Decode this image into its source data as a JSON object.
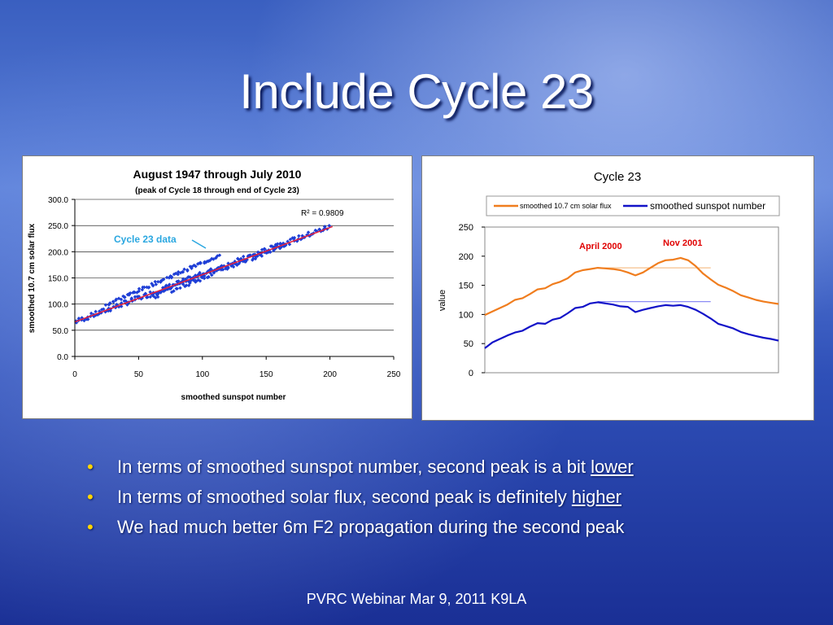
{
  "slide": {
    "title": "Include Cycle 23",
    "footer": "PVRC Webinar Mar 9, 2011 K9LA",
    "bullets": [
      {
        "before": "In terms of smoothed sunspot number, second peak is a bit ",
        "emph": "lower"
      },
      {
        "before": "In terms of smoothed solar flux, second peak is definitely ",
        "emph": "higher"
      },
      {
        "before": "We had much better 6m F2 propagation during the second peak",
        "emph": ""
      }
    ],
    "colors": {
      "background": "#2b4fb0",
      "bullet": "#ffd400",
      "title": "#ffffff"
    }
  },
  "chart_data": [
    {
      "type": "scatter",
      "title": "August 1947 through July 2010",
      "subtitle": "(peak of Cycle 18 through end of Cycle 23)",
      "xlabel": "smoothed sunspot number",
      "ylabel": "smoothed 10.7 cm solar flux",
      "xlim": [
        0,
        250
      ],
      "ylim": [
        0,
        300
      ],
      "xticks": [
        "0",
        "50",
        "100",
        "150",
        "200",
        "250"
      ],
      "yticks": [
        "0.0",
        "50.0",
        "100.0",
        "150.0",
        "200.0",
        "250.0",
        "300.0"
      ],
      "grid": true,
      "annotations": {
        "r_squared": "R² = 0.9809",
        "cycle_label": "Cycle 23 data"
      },
      "trendline": {
        "x": [
          0,
          202
        ],
        "y": [
          66,
          248
        ],
        "color": "#e8203a"
      },
      "point_color": "#1f3fd6",
      "point_groups": [
        {
          "x_start": 1,
          "x_end": 200,
          "slope": 0.91,
          "intercept": 66,
          "jitter": 5,
          "step": 1.0
        },
        {
          "x_start": 25,
          "x_end": 115,
          "slope": 1.06,
          "intercept": 73,
          "jitter": 3,
          "step": 1.2
        },
        {
          "x_start": 60,
          "x_end": 165,
          "slope": 0.97,
          "intercept": 55,
          "jitter": 6,
          "step": 1.0
        }
      ]
    },
    {
      "type": "line",
      "title": "Cycle 23",
      "ylabel": "value",
      "ylim": [
        0,
        250
      ],
      "yticks": [
        "0",
        "50",
        "100",
        "150",
        "200",
        "250"
      ],
      "grid": false,
      "legend_position": "top",
      "annotations": [
        {
          "text": "April 2000",
          "color": "#e00000"
        },
        {
          "text": "Nov 2001",
          "color": "#e00000"
        }
      ],
      "reference_lines": [
        {
          "value": 180,
          "color": "#f5c08c"
        },
        {
          "value": 122,
          "color": "#8c8cf5"
        }
      ],
      "series": [
        {
          "name": "smoothed 10.7 cm solar flux",
          "color": "#f07d1e",
          "values": [
            99,
            105,
            111,
            117,
            125,
            128,
            135,
            143,
            145,
            152,
            156,
            162,
            172,
            176,
            178,
            180,
            179,
            178,
            176,
            172,
            167,
            172,
            180,
            188,
            193,
            194,
            197,
            193,
            183,
            170,
            160,
            151,
            146,
            140,
            133,
            129,
            125,
            122,
            120,
            118
          ]
        },
        {
          "name": "smoothed sunspot number",
          "color": "#1212c8",
          "values": [
            42,
            52,
            58,
            64,
            69,
            72,
            79,
            85,
            84,
            91,
            94,
            102,
            111,
            113,
            119,
            121,
            119,
            117,
            114,
            113,
            104,
            108,
            111,
            114,
            116,
            115,
            116,
            113,
            108,
            101,
            93,
            84,
            80,
            76,
            70,
            66,
            63,
            60,
            58,
            55
          ]
        }
      ]
    }
  ]
}
